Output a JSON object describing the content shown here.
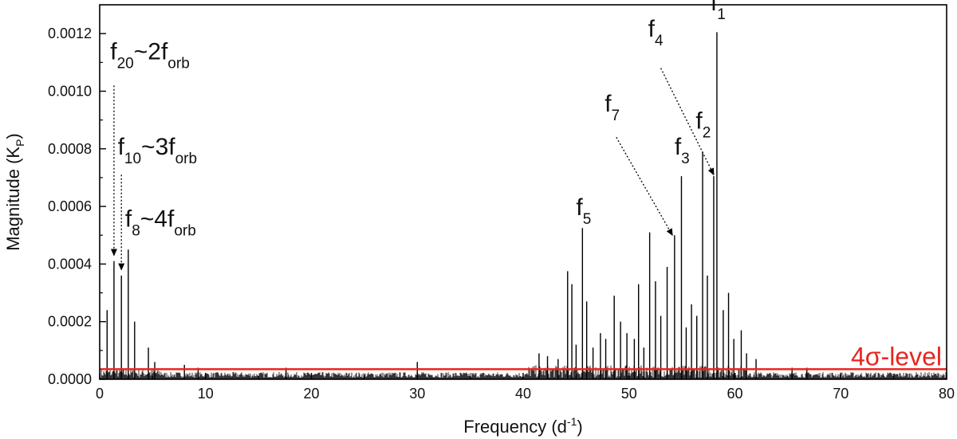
{
  "chart_data": {
    "type": "line",
    "xlabel": "Frequency (d",
    "xlabel_sup": "-1",
    "xlabel_end": ")",
    "ylabel": "Magnitude (K",
    "ylabel_sub": "P",
    "ylabel_end": ")",
    "xlim": [
      0,
      80
    ],
    "ylim": [
      0,
      0.0013
    ],
    "x_ticks": [
      0,
      10,
      20,
      30,
      40,
      50,
      60,
      70,
      80
    ],
    "x_tick_labels": [
      "0",
      "10",
      "20",
      "30",
      "40",
      "50",
      "60",
      "70",
      "80"
    ],
    "y_ticks": [
      0,
      0.0002,
      0.0004,
      0.0006,
      0.0008,
      0.001,
      0.0012
    ],
    "y_tick_labels": [
      "0.0000",
      "0.0002",
      "0.0004",
      "0.0006",
      "0.0008",
      "0.0010",
      "0.0012"
    ],
    "line_color": "#000000",
    "threshold": {
      "label": "4σ-level",
      "value": 3.5e-05,
      "color": "#e8251f"
    },
    "peaks": [
      {
        "x": 0.7,
        "y": 0.00024
      },
      {
        "x": 1.35,
        "y": 0.00041
      },
      {
        "x": 2.05,
        "y": 0.00036
      },
      {
        "x": 2.7,
        "y": 0.00045
      },
      {
        "x": 3.3,
        "y": 0.0002
      },
      {
        "x": 4.6,
        "y": 0.00011
      },
      {
        "x": 5.2,
        "y": 6e-05
      },
      {
        "x": 8.0,
        "y": 5e-05
      },
      {
        "x": 9.3,
        "y": 4e-05
      },
      {
        "x": 17.6,
        "y": 4e-05
      },
      {
        "x": 30.0,
        "y": 6e-05
      },
      {
        "x": 41.5,
        "y": 9e-05
      },
      {
        "x": 42.3,
        "y": 8e-05
      },
      {
        "x": 43.3,
        "y": 7e-05
      },
      {
        "x": 44.2,
        "y": 0.000375
      },
      {
        "x": 44.6,
        "y": 0.00033
      },
      {
        "x": 45.0,
        "y": 0.00012
      },
      {
        "x": 45.6,
        "y": 0.000525
      },
      {
        "x": 46.0,
        "y": 0.00027
      },
      {
        "x": 46.6,
        "y": 0.00011
      },
      {
        "x": 47.3,
        "y": 0.00016
      },
      {
        "x": 47.8,
        "y": 0.00014
      },
      {
        "x": 48.6,
        "y": 0.00029
      },
      {
        "x": 49.2,
        "y": 0.0002
      },
      {
        "x": 49.8,
        "y": 0.00016
      },
      {
        "x": 50.5,
        "y": 0.00014
      },
      {
        "x": 50.9,
        "y": 0.00033
      },
      {
        "x": 51.4,
        "y": 0.00011
      },
      {
        "x": 51.95,
        "y": 0.00051
      },
      {
        "x": 52.5,
        "y": 0.00034
      },
      {
        "x": 53.0,
        "y": 0.00022
      },
      {
        "x": 53.6,
        "y": 0.00039
      },
      {
        "x": 54.3,
        "y": 0.0005
      },
      {
        "x": 54.95,
        "y": 0.000705
      },
      {
        "x": 55.4,
        "y": 0.00018
      },
      {
        "x": 55.9,
        "y": 0.00026
      },
      {
        "x": 56.4,
        "y": 0.00022
      },
      {
        "x": 56.95,
        "y": 0.00079
      },
      {
        "x": 57.4,
        "y": 0.00036
      },
      {
        "x": 58.0,
        "y": 0.000705
      },
      {
        "x": 58.3,
        "y": 0.001205
      },
      {
        "x": 58.9,
        "y": 0.00024
      },
      {
        "x": 59.4,
        "y": 0.0003
      },
      {
        "x": 59.9,
        "y": 0.00014
      },
      {
        "x": 60.6,
        "y": 0.00017
      },
      {
        "x": 61.1,
        "y": 9e-05
      },
      {
        "x": 62.0,
        "y": 7e-05
      },
      {
        "x": 65.4,
        "y": 4e-05
      },
      {
        "x": 66.8,
        "y": 4e-05
      }
    ],
    "annotations": [
      {
        "id": "f20",
        "base": "f",
        "sub": "20",
        "rest": "~2f",
        "rest_sub": "orb",
        "text_x": 1.0,
        "text_y": 0.00111,
        "arrow_from": [
          1.35,
          0.00102
        ],
        "arrow_to": [
          1.35,
          0.00043
        ]
      },
      {
        "id": "f10",
        "base": "f",
        "sub": "10",
        "rest": "~3f",
        "rest_sub": "orb",
        "text_x": 1.7,
        "text_y": 0.00078,
        "arrow_from": [
          2.05,
          0.00071
        ],
        "arrow_to": [
          2.05,
          0.00038
        ]
      },
      {
        "id": "f8",
        "base": "f",
        "sub": "8",
        "rest": "~4f",
        "rest_sub": "orb",
        "text_x": 2.4,
        "text_y": 0.00053,
        "arrow_from": null,
        "arrow_to": null
      },
      {
        "id": "f5",
        "base": "f",
        "sub": "5",
        "rest": "",
        "rest_sub": "",
        "text_x": 45.0,
        "text_y": 0.00057,
        "arrow_from": null,
        "arrow_to": null
      },
      {
        "id": "f7",
        "base": "f",
        "sub": "7",
        "rest": "",
        "rest_sub": "",
        "text_x": 47.7,
        "text_y": 0.00093,
        "arrow_from": [
          48.8,
          0.00084
        ],
        "arrow_to": [
          54.1,
          0.0005
        ]
      },
      {
        "id": "f4",
        "base": "f",
        "sub": "4",
        "rest": "",
        "rest_sub": "",
        "text_x": 51.8,
        "text_y": 0.00119,
        "arrow_from": [
          53.0,
          0.00108
        ],
        "arrow_to": [
          58.0,
          0.00071
        ]
      },
      {
        "id": "f3",
        "base": "f",
        "sub": "3",
        "rest": "",
        "rest_sub": "",
        "text_x": 54.3,
        "text_y": 0.00078,
        "arrow_from": null,
        "arrow_to": null
      },
      {
        "id": "f2",
        "base": "f",
        "sub": "2",
        "rest": "",
        "rest_sub": "",
        "text_x": 56.3,
        "text_y": 0.00087,
        "arrow_from": null,
        "arrow_to": null
      },
      {
        "id": "f1",
        "base": "f",
        "sub": "1",
        "rest": "",
        "rest_sub": "",
        "text_x": 57.7,
        "text_y": 0.00128,
        "arrow_from": null,
        "arrow_to": null
      }
    ]
  }
}
